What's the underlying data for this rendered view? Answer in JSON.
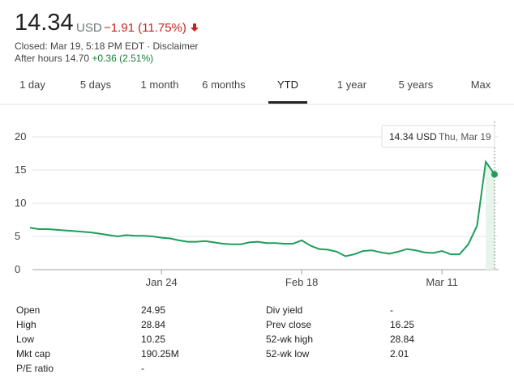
{
  "header": {
    "price": "14.34",
    "currency": "USD",
    "change": "−1.91 (11.75%)",
    "closed": "Closed: Mar 19, 5:18 PM EDT · Disclaimer",
    "after_hours": "After hours 14.70",
    "after_hours_change": "+0.36 (2.51%)"
  },
  "tabs": [
    "1 day",
    "5 days",
    "1 month",
    "6 months",
    "YTD",
    "1 year",
    "5 years",
    "Max"
  ],
  "selected_tab": "YTD",
  "chart_data": {
    "type": "line",
    "color": "#1e9e5a",
    "grid": true,
    "categories": [
      null,
      null,
      null,
      null,
      null,
      null,
      null,
      null,
      null,
      null,
      null,
      null,
      null,
      null,
      null,
      "Jan 24",
      null,
      null,
      null,
      null,
      null,
      null,
      null,
      null,
      null,
      null,
      null,
      null,
      null,
      null,
      null,
      "Feb 18",
      null,
      null,
      null,
      null,
      null,
      null,
      null,
      null,
      null,
      null,
      null,
      null,
      null,
      null,
      null,
      "Mar 11",
      null,
      null,
      null,
      null,
      null,
      null
    ],
    "values": [
      6.3,
      6.1,
      6.1,
      6.0,
      5.9,
      5.8,
      5.7,
      5.6,
      5.4,
      5.2,
      5.0,
      5.2,
      5.1,
      5.1,
      5.0,
      4.8,
      4.7,
      4.4,
      4.2,
      4.2,
      4.3,
      4.1,
      3.9,
      3.8,
      3.8,
      4.1,
      4.2,
      4.0,
      4.0,
      3.9,
      3.9,
      4.4,
      3.6,
      3.1,
      3.0,
      2.7,
      2.01,
      2.3,
      2.8,
      2.9,
      2.6,
      2.4,
      2.7,
      3.1,
      2.9,
      2.6,
      2.5,
      2.8,
      2.3,
      2.3,
      3.8,
      6.6,
      16.25,
      14.34
    ],
    "ylim": [
      0,
      20
    ],
    "yticks": [
      0,
      5,
      10,
      15,
      20
    ],
    "tooltip": {
      "value": "14.34 USD",
      "date": "Thu, Mar 19"
    }
  },
  "stats": {
    "left": [
      {
        "label": "Open",
        "value": "24.95"
      },
      {
        "label": "High",
        "value": "28.84"
      },
      {
        "label": "Low",
        "value": "10.25"
      },
      {
        "label": "Mkt cap",
        "value": "190.25M"
      },
      {
        "label": "P/E ratio",
        "value": "-"
      }
    ],
    "right": [
      {
        "label": "Div yield",
        "value": "-"
      },
      {
        "label": "Prev close",
        "value": "16.25"
      },
      {
        "label": "52-wk high",
        "value": "28.84"
      },
      {
        "label": "52-wk low",
        "value": "2.01"
      }
    ]
  }
}
